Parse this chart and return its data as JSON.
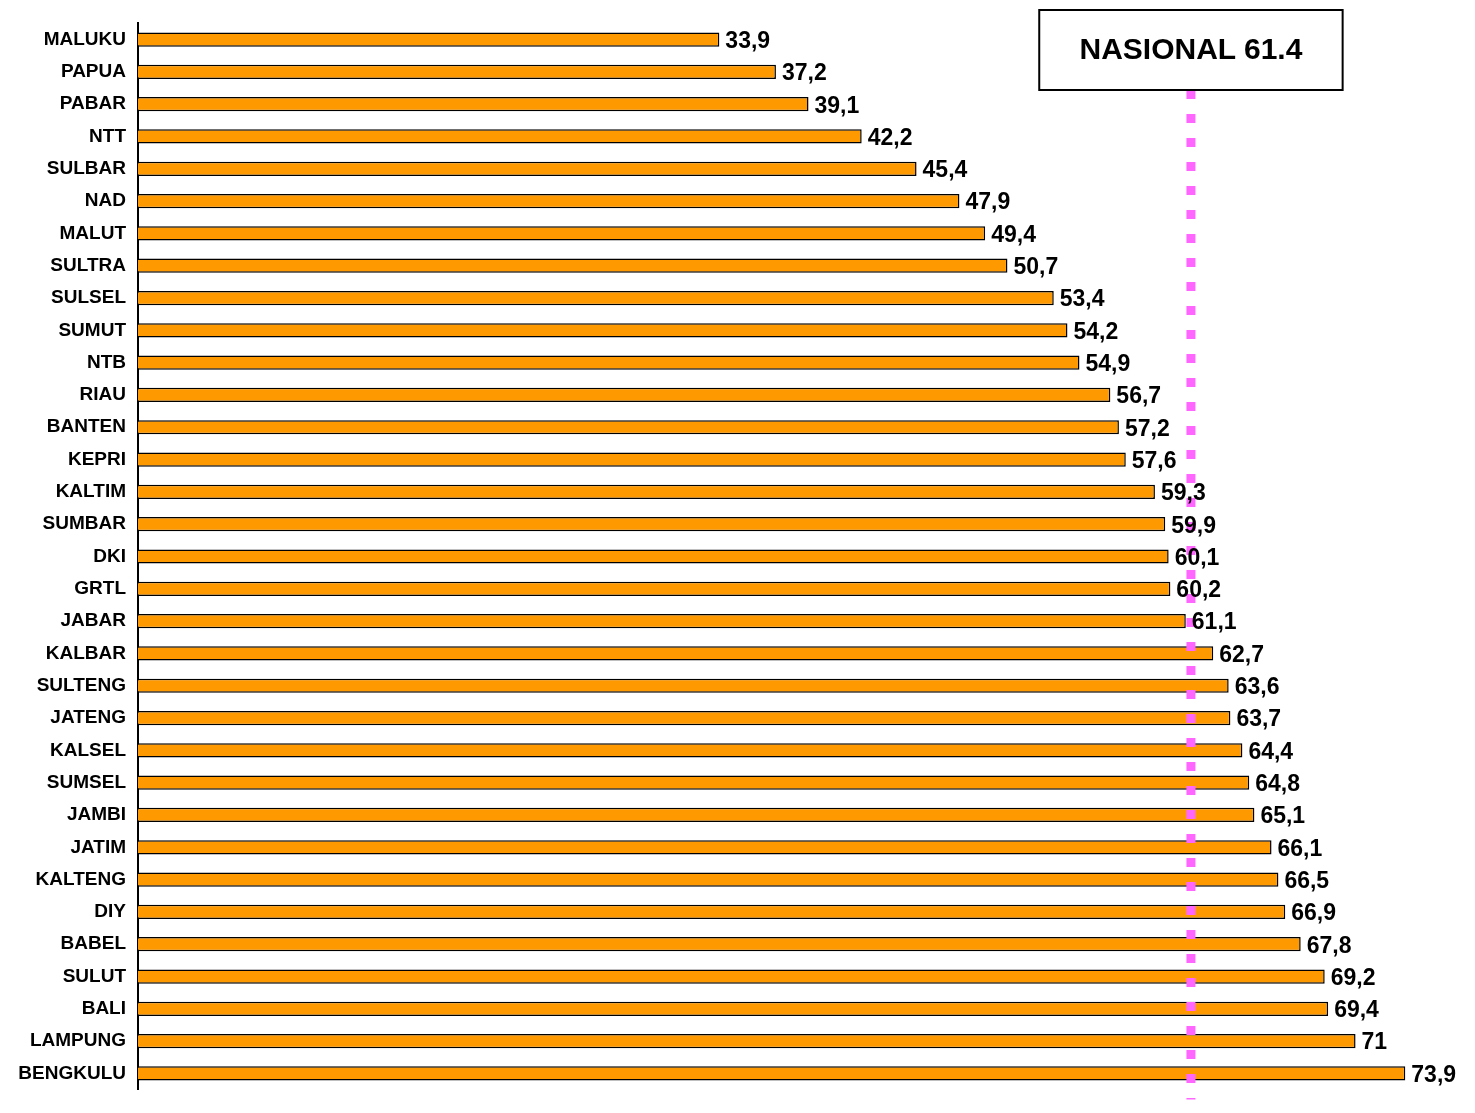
{
  "chart_data": {
    "type": "bar",
    "orientation": "horizontal",
    "categories": [
      "MALUKU",
      "PAPUA",
      "PABAR",
      "NTT",
      "SULBAR",
      "NAD",
      "MALUT",
      "SULTRA",
      "SULSEL",
      "SUMUT",
      "NTB",
      "RIAU",
      "BANTEN",
      "KEPRI",
      "KALTIM",
      "SUMBAR",
      "DKI",
      "GRTL",
      "JABAR",
      "KALBAR",
      "SULTENG",
      "JATENG",
      "KALSEL",
      "SUMSEL",
      "JAMBI",
      "JATIM",
      "KALTENG",
      "DIY",
      "BABEL",
      "SULUT",
      "BALI",
      "LAMPUNG",
      "BENGKULU"
    ],
    "values": [
      33.9,
      37.2,
      39.1,
      42.2,
      45.4,
      47.9,
      49.4,
      50.7,
      53.4,
      54.2,
      54.9,
      56.7,
      57.2,
      57.6,
      59.3,
      59.9,
      60.1,
      60.2,
      61.1,
      62.7,
      63.6,
      63.7,
      64.4,
      64.8,
      65.1,
      66.1,
      66.5,
      66.9,
      67.8,
      69.2,
      69.4,
      71,
      73.9
    ],
    "value_labels": [
      "33,9",
      "37,2",
      "39,1",
      "42,2",
      "45,4",
      "47,9",
      "49,4",
      "50,7",
      "53,4",
      "54,2",
      "54,9",
      "56,7",
      "57,2",
      "57,6",
      "59,3",
      "59,9",
      "60,1",
      "60,2",
      "61,1",
      "62,7",
      "63,6",
      "63,7",
      "64,4",
      "64,8",
      "65,1",
      "66,1",
      "66,5",
      "66,9",
      "67,8",
      "69,2",
      "69,4",
      "71",
      "73,9"
    ],
    "color": "#ff9900",
    "grid": false,
    "legend": false,
    "ref_lines": [
      {
        "axis": "x",
        "value": 61.4,
        "label": "NASIONAL 61.4",
        "color": "#ff66ff",
        "line_style": "dotted"
      }
    ]
  }
}
